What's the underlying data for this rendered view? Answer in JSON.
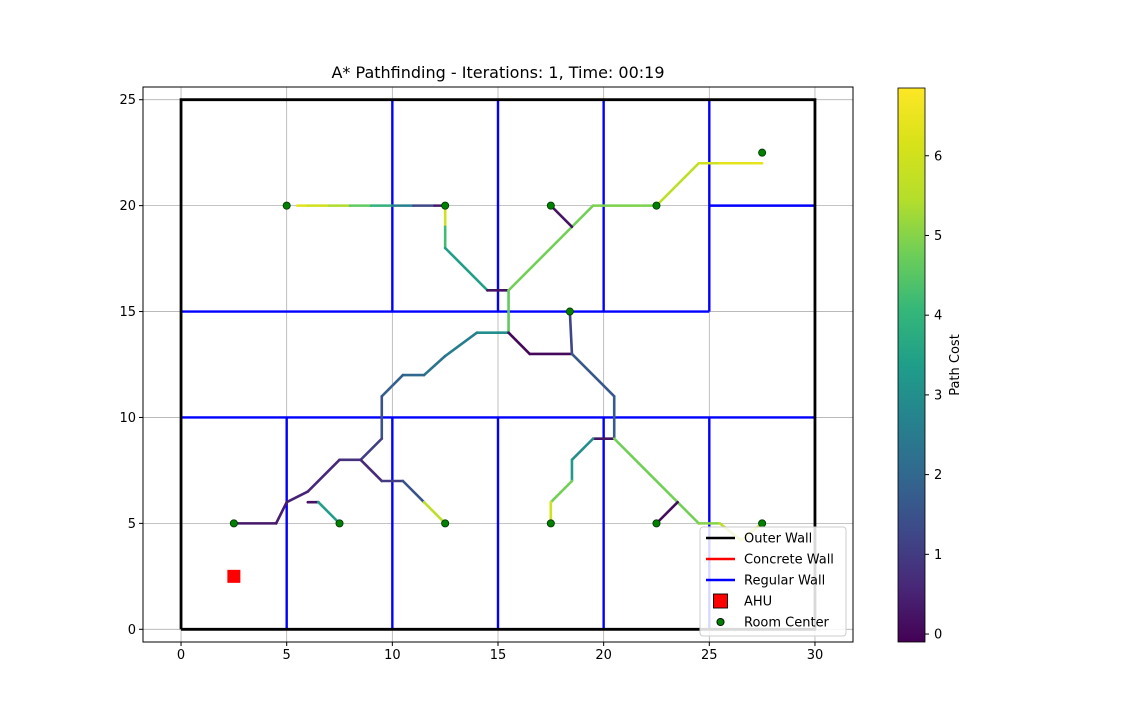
{
  "chart_data": {
    "type": "line",
    "title": "A* Pathfinding - Iterations: 1, Time: 00:19",
    "xlim": [
      -1.8,
      31.8
    ],
    "ylim": [
      -0.6,
      25.6
    ],
    "x_ticks": [
      0,
      5,
      10,
      15,
      20,
      25,
      30
    ],
    "y_ticks": [
      0,
      5,
      10,
      15,
      20,
      25
    ],
    "grid": true,
    "legend_position": "lower-right",
    "legend": [
      {
        "label": "Outer Wall",
        "kind": "line",
        "color": "#000000"
      },
      {
        "label": "Concrete Wall",
        "kind": "line",
        "color": "#ff0000"
      },
      {
        "label": "Regular Wall",
        "kind": "line",
        "color": "#0000ff"
      },
      {
        "label": "AHU",
        "kind": "square",
        "color": "#ff0000"
      },
      {
        "label": "Room Center",
        "kind": "dot",
        "color": "#008000"
      }
    ],
    "outer_wall": [
      [
        0,
        0
      ],
      [
        30,
        0
      ],
      [
        30,
        25
      ],
      [
        0,
        25
      ],
      [
        0,
        0
      ]
    ],
    "regular_walls": [
      [
        [
          0,
          15
        ],
        [
          25,
          15
        ]
      ],
      [
        [
          0,
          10
        ],
        [
          30,
          10
        ]
      ],
      [
        [
          25,
          20
        ],
        [
          30,
          20
        ]
      ],
      [
        [
          10,
          25
        ],
        [
          10,
          15
        ]
      ],
      [
        [
          15,
          25
        ],
        [
          15,
          15
        ]
      ],
      [
        [
          20,
          25
        ],
        [
          20,
          15
        ]
      ],
      [
        [
          25,
          25
        ],
        [
          25,
          15
        ]
      ],
      [
        [
          5,
          10
        ],
        [
          5,
          0
        ]
      ],
      [
        [
          10,
          10
        ],
        [
          10,
          0
        ]
      ],
      [
        [
          15,
          10
        ],
        [
          15,
          0
        ]
      ],
      [
        [
          20,
          10
        ],
        [
          20,
          0
        ]
      ],
      [
        [
          25,
          10
        ],
        [
          25,
          0
        ]
      ]
    ],
    "ahu": [
      2.5,
      2.5
    ],
    "room_centers": [
      [
        5,
        20
      ],
      [
        12.5,
        20
      ],
      [
        17.5,
        20
      ],
      [
        22.5,
        20
      ],
      [
        27.5,
        22.5
      ],
      [
        18.4,
        15
      ],
      [
        2.5,
        5
      ],
      [
        7.5,
        5
      ],
      [
        12.5,
        5
      ],
      [
        17.5,
        5
      ],
      [
        22.5,
        5
      ],
      [
        27.5,
        5
      ]
    ],
    "colorbar": {
      "label": "Path Cost",
      "min": -0.1,
      "max": 6.85,
      "ticks": [
        0,
        1,
        2,
        3,
        4,
        5,
        6
      ]
    },
    "paths": [
      {
        "points": [
          [
            5.5,
            20
          ],
          [
            6,
            20
          ],
          [
            7,
            20
          ],
          [
            8,
            20
          ],
          [
            9,
            20
          ],
          [
            10,
            20
          ],
          [
            11,
            20
          ],
          [
            12,
            20
          ],
          [
            12.5,
            20
          ]
        ],
        "costs": [
          6.3,
          6.0,
          5.4,
          4.6,
          3.9,
          2.6,
          1.3,
          0.3
        ]
      },
      {
        "points": [
          [
            12.5,
            20
          ],
          [
            12.5,
            19
          ],
          [
            12.5,
            18
          ],
          [
            14.5,
            16
          ],
          [
            15.5,
            16
          ]
        ],
        "costs": [
          6.0,
          4.2,
          3.4,
          0.2
        ]
      },
      {
        "points": [
          [
            15.5,
            16
          ],
          [
            15.5,
            14
          ],
          [
            14,
            14
          ],
          [
            12.5,
            12.9
          ],
          [
            11.5,
            12
          ],
          [
            10.5,
            12
          ],
          [
            9.5,
            11
          ],
          [
            9.5,
            9
          ],
          [
            8.5,
            8
          ],
          [
            7.5,
            8
          ],
          [
            6,
            6.5
          ],
          [
            5,
            6
          ],
          [
            4.5,
            5
          ],
          [
            2.5,
            5
          ]
        ],
        "costs": [
          4.6,
          3.0,
          2.6,
          2.3,
          2.0,
          1.8,
          1.5,
          1.1,
          0.8,
          0.6,
          0.5,
          0.4,
          0.3
        ]
      },
      {
        "points": [
          [
            6,
            6
          ],
          [
            6.5,
            6
          ],
          [
            7.5,
            5
          ]
        ],
        "costs": [
          0.2,
          3.4
        ]
      },
      {
        "points": [
          [
            8.5,
            8
          ],
          [
            9.5,
            7
          ],
          [
            10.5,
            7
          ],
          [
            11.5,
            6
          ],
          [
            12.5,
            5
          ]
        ],
        "costs": [
          0.6,
          1.0,
          1.5,
          5.6
        ]
      },
      {
        "points": [
          [
            15.5,
            16
          ],
          [
            17.5,
            18
          ],
          [
            19.5,
            20
          ],
          [
            22.5,
            20
          ],
          [
            24.5,
            22
          ],
          [
            25.5,
            22
          ],
          [
            27.5,
            22
          ]
        ],
        "costs": [
          4.8,
          4.8,
          4.9,
          5.6,
          6.0,
          6.4
        ]
      },
      {
        "points": [
          [
            17.5,
            20
          ],
          [
            18.5,
            19
          ]
        ],
        "costs": [
          0.2
        ]
      },
      {
        "points": [
          [
            15.5,
            14
          ],
          [
            16.5,
            13
          ],
          [
            18.5,
            13
          ],
          [
            18.4,
            15
          ]
        ],
        "costs": [
          0.0,
          0.0,
          1.2
        ]
      },
      {
        "points": [
          [
            18.5,
            13
          ],
          [
            20.5,
            11
          ],
          [
            20.5,
            9
          ],
          [
            19.5,
            9
          ],
          [
            18.5,
            8
          ],
          [
            18.5,
            7
          ],
          [
            17.5,
            6
          ],
          [
            17.5,
            5
          ]
        ],
        "costs": [
          1.6,
          1.7,
          0.2,
          3.0,
          3.3,
          4.8,
          6.0
        ]
      },
      {
        "points": [
          [
            20.5,
            9
          ],
          [
            24.5,
            5
          ],
          [
            25.5,
            5
          ],
          [
            26.5,
            4.2
          ],
          [
            27.5,
            5
          ]
        ],
        "costs": [
          4.8,
          5.0,
          5.6,
          6.2
        ]
      },
      {
        "points": [
          [
            22.5,
            5
          ],
          [
            23.5,
            6
          ]
        ],
        "costs": [
          0.1
        ]
      }
    ]
  }
}
